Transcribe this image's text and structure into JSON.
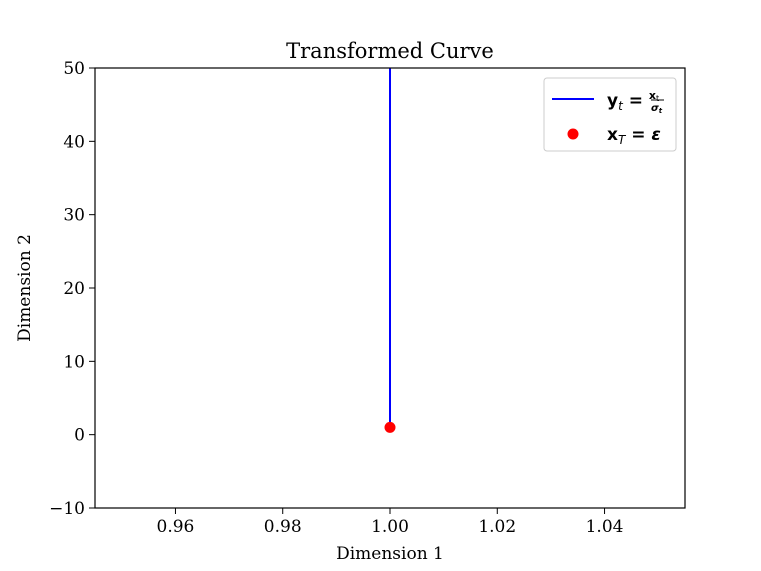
{
  "chart_data": {
    "type": "line",
    "title": "Transformed Curve",
    "xlabel": "Dimension 1",
    "ylabel": "Dimension 2",
    "xlim": [
      0.945,
      1.055
    ],
    "ylim": [
      -10,
      50
    ],
    "x_ticks": [
      0.96,
      0.98,
      1.0,
      1.02,
      1.04
    ],
    "x_tick_labels": [
      "0.96",
      "0.98",
      "1.00",
      "1.02",
      "1.04"
    ],
    "y_ticks": [
      -10,
      0,
      10,
      20,
      30,
      40,
      50
    ],
    "y_tick_labels": [
      "−10",
      "0",
      "10",
      "20",
      "30",
      "40",
      "50"
    ],
    "grid": false,
    "legend_position": "upper-right",
    "series": [
      {
        "name": "y_t = x_t / σ_t",
        "type": "line",
        "color": "#0000ff",
        "x": [
          1.0,
          1.0
        ],
        "y": [
          1.0,
          50
        ]
      },
      {
        "name": "x_T = ε",
        "type": "scatter",
        "color": "#ff0000",
        "x": [
          1.0
        ],
        "y": [
          1.0
        ]
      }
    ]
  }
}
